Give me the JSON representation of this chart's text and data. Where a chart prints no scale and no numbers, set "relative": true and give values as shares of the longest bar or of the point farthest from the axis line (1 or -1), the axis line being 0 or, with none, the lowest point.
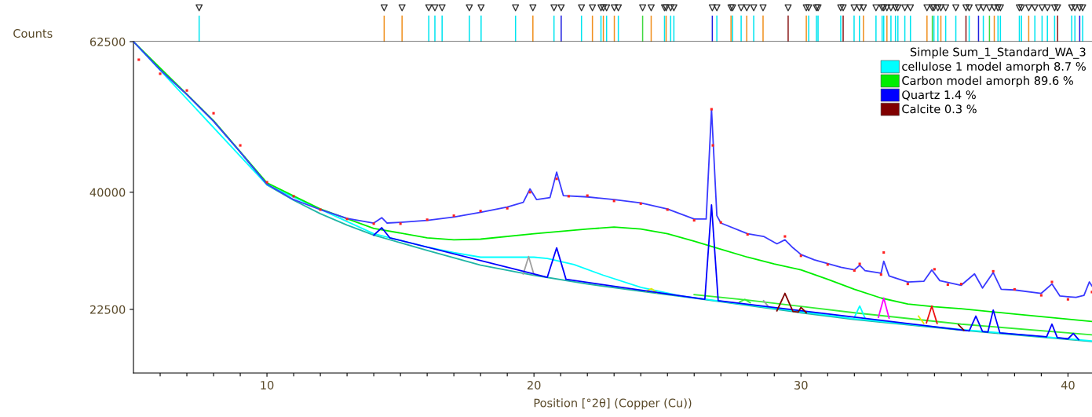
{
  "chart_data": [
    {
      "type": "bar",
      "relative": true,
      "tick_labels": false,
      "xlim": [
        5,
        40.9
      ],
      "marker": "triangle",
      "series": [
        {
          "color": "#00e5f0",
          "x": [
            7.46,
            16.06,
            16.29,
            16.56,
            17.58,
            18.02,
            19.31,
            20.75,
            21.78,
            22.51,
            22.72,
            23.16,
            24.89,
            25.12,
            25.24,
            26.85,
            27.44,
            27.76,
            28.23,
            30.29,
            30.58,
            30.64,
            31.49,
            31.99,
            32.19,
            32.81,
            33.04,
            33.1,
            33.37,
            33.54,
            33.63,
            33.89,
            34.1,
            34.98,
            35.13,
            35.42,
            35.8,
            36.3,
            36.83,
            37.38,
            37.47,
            38.18,
            38.26,
            38.76,
            39.03,
            39.23,
            39.5,
            40.14,
            40.26,
            40.55
          ],
          "values": [
            1,
            1,
            1,
            1,
            1,
            1,
            1,
            1,
            1,
            1,
            1,
            1,
            1,
            1,
            1,
            1,
            1,
            1,
            1,
            1,
            1,
            1,
            1,
            1,
            1,
            1,
            1,
            1,
            1,
            1,
            1,
            1,
            1,
            1,
            1,
            1,
            1,
            1,
            1,
            1,
            1,
            1,
            1,
            1,
            1,
            1,
            1,
            1,
            1,
            1
          ]
        },
        {
          "color": "#f0901e",
          "x": [
            14.39,
            15.06,
            19.96,
            22.19,
            22.6,
            23.01,
            24.39,
            24.95,
            27.38,
            27.97,
            28.58,
            30.2,
            32.34,
            33.22,
            34.72,
            35.24,
            37.24,
            38.53
          ],
          "values": [
            1,
            1,
            1,
            1,
            1,
            1,
            1,
            1,
            1,
            1,
            1,
            1,
            1,
            1,
            1,
            1,
            1,
            1
          ]
        },
        {
          "color": "#2020e0",
          "x": [
            21.02,
            26.68,
            36.65,
            40.44
          ],
          "values": [
            1,
            1,
            1,
            1
          ]
        },
        {
          "color": "#40d840",
          "x": [
            24.07,
            34.92,
            37.06
          ],
          "values": [
            1,
            1,
            1
          ]
        },
        {
          "color": "#8b1a1a",
          "x": [
            29.52,
            31.58,
            36.18,
            39.61
          ],
          "values": [
            1,
            1,
            1,
            1
          ]
        }
      ]
    },
    {
      "type": "line",
      "ylabel": "Counts",
      "xlabel": "Position [°2θ] (Copper (Cu))",
      "legend_title": "Simple Sum_1_Standard_WA_3",
      "legend": "top right",
      "xlim": [
        5,
        40.9
      ],
      "ylim": [
        13000,
        62500
      ],
      "yticks": [
        22500,
        40000,
        62500
      ],
      "xticks": [
        {
          "value": 6,
          "label": null
        },
        {
          "value": 7,
          "label": null
        },
        {
          "value": 8,
          "label": null
        },
        {
          "value": 9,
          "label": null
        },
        10,
        {
          "value": 11,
          "label": null
        },
        {
          "value": 12,
          "label": null
        },
        {
          "value": 13,
          "label": null
        },
        {
          "value": 14,
          "label": null
        },
        {
          "value": 15,
          "label": null
        },
        {
          "value": 16,
          "label": null
        },
        {
          "value": 17,
          "label": null
        },
        {
          "value": 18,
          "label": null
        },
        {
          "value": 19,
          "label": null
        },
        20,
        {
          "value": 21,
          "label": null
        },
        {
          "value": 22,
          "label": null
        },
        {
          "value": 23,
          "label": null
        },
        {
          "value": 24,
          "label": null
        },
        {
          "value": 25,
          "label": null
        },
        {
          "value": 26,
          "label": null
        },
        {
          "value": 27,
          "label": null
        },
        {
          "value": 28,
          "label": null
        },
        {
          "value": 29,
          "label": null
        },
        30,
        {
          "value": 31,
          "label": null
        },
        {
          "value": 32,
          "label": null
        },
        {
          "value": 33,
          "label": null
        },
        {
          "value": 34,
          "label": null
        },
        {
          "value": 35,
          "label": null
        },
        {
          "value": 36,
          "label": null
        },
        {
          "value": 37,
          "label": null
        },
        {
          "value": 38,
          "label": null
        },
        {
          "value": 39,
          "label": null
        },
        40
      ],
      "series": [
        {
          "color": "#1fb5a5",
          "x": [
            5,
            6,
            7,
            8,
            9,
            10,
            11,
            12,
            13,
            14,
            16,
            18,
            20,
            22,
            24,
            26,
            28,
            30,
            32,
            34,
            36,
            38,
            40.9
          ],
          "values": [
            62500,
            58300,
            54600,
            50600,
            46000,
            41100,
            38800,
            36800,
            35100,
            33600,
            31300,
            29100,
            27600,
            26300,
            25200,
            24200,
            23100,
            22000,
            21000,
            20200,
            19400,
            18700,
            17700
          ]
        },
        {
          "name": "cellulose 1 model amorph 8.7 %",
          "color": "#00ffff",
          "x": [
            5,
            10,
            14,
            16,
            17,
            18,
            19,
            20,
            20.5,
            21.5,
            22.6,
            24,
            25.5,
            28,
            32,
            36,
            40.9
          ],
          "values": [
            62500,
            41100,
            33800,
            31800,
            31000,
            30300,
            30300,
            30300,
            30100,
            29200,
            27600,
            25800,
            24500,
            23200,
            21100,
            19500,
            17800
          ]
        },
        {
          "name": "Carbon model amorph 89.6 %",
          "color": "#00ee00",
          "x": [
            5,
            8,
            10,
            12,
            14,
            16,
            17,
            18,
            20,
            22,
            23,
            24,
            25,
            26,
            27,
            28,
            29,
            30,
            31,
            32,
            33,
            34,
            35,
            36,
            38,
            40.9
          ],
          "values": [
            62500,
            50700,
            41400,
            37500,
            34600,
            33200,
            32900,
            33000,
            33800,
            34500,
            34800,
            34500,
            33800,
            32700,
            31500,
            30300,
            29300,
            28400,
            27000,
            25500,
            24200,
            23300,
            22900,
            22600,
            21800,
            20700
          ]
        },
        {
          "color": "#33ee33",
          "x": [
            26,
            28,
            32,
            36,
            40.9
          ],
          "values": [
            24700,
            23900,
            22000,
            20300,
            18700
          ]
        },
        {
          "color": "#33ee33",
          "x": [
            27.7,
            27.9,
            28.1
          ],
          "values": [
            23600,
            24000,
            23500
          ]
        },
        {
          "color": "#a0a0a0",
          "x": [
            19.6,
            19.8,
            20.0,
            28.4,
            28.6,
            28.8
          ],
          "values": [
            27800,
            30400,
            27700,
            null,
            23800,
            22800
          ]
        },
        {
          "color": "#ff00ff",
          "x": [
            32.9,
            33.1,
            33.3
          ],
          "values": [
            21300,
            24200,
            21200
          ]
        },
        {
          "color": "#ee1111",
          "x": [
            34.7,
            34.9,
            35.1
          ],
          "values": [
            20500,
            23000,
            20400
          ]
        },
        {
          "color": "#e8e800",
          "x": [
            24.2,
            24.4,
            24.6,
            34.2,
            34.4,
            34.6
          ],
          "values": [
            25200,
            25600,
            25000,
            null,
            21500,
            20400
          ]
        },
        {
          "color": "#00ffff",
          "x": [
            32.0,
            32.2,
            32.4
          ],
          "values": [
            21300,
            23000,
            21200
          ]
        },
        {
          "name": "Quartz 1.4 %",
          "color": "#0000ff",
          "x": [
            14,
            14.3,
            14.6,
            20.5,
            20.85,
            21.2,
            26.4,
            26.65,
            26.9,
            36.3,
            36.55,
            36.8,
            37.0,
            37.2,
            37.45,
            39.2,
            39.4,
            39.6,
            40.0,
            40.2,
            40.4
          ],
          "values": [
            33600,
            34700,
            33200,
            27300,
            31700,
            27000,
            24000,
            38100,
            23800,
            19300,
            21500,
            19200,
            19100,
            22400,
            19000,
            18400,
            20300,
            18300,
            18100,
            18900,
            18000
          ]
        },
        {
          "name": "Calcite 0.3 %",
          "color": "#800000",
          "x": [
            29.1,
            29.4,
            29.7,
            29.9,
            30.0,
            30.2,
            35.7,
            35.9,
            36.1
          ],
          "values": [
            22300,
            24900,
            22200,
            22100,
            22800,
            22000,
            null,
            20200,
            19400
          ]
        },
        {
          "type": "scatter",
          "color": "#ff2020",
          "x": [
            5.2,
            6,
            7,
            8,
            9,
            10,
            11,
            12,
            13,
            14,
            15,
            16,
            17,
            18,
            19,
            19.85,
            20.85,
            21.3,
            22,
            23,
            24,
            25,
            26,
            26.65,
            26.7,
            27,
            28,
            29.4,
            30,
            31,
            32,
            32.2,
            33,
            33.1,
            34,
            35,
            35.5,
            36,
            37.2,
            38,
            39,
            39.4,
            40,
            40.9
          ],
          "values": [
            59800,
            57700,
            55200,
            51800,
            47000,
            41500,
            39400,
            37400,
            36000,
            35300,
            35300,
            35900,
            36500,
            37200,
            37600,
            40000,
            42000,
            39400,
            39500,
            38700,
            38300,
            37400,
            35800,
            52400,
            47000,
            35500,
            33700,
            33400,
            30500,
            29200,
            28300,
            29300,
            27700,
            31000,
            26300,
            28500,
            26200,
            26300,
            28200,
            25500,
            24600,
            26600,
            24000,
            25100
          ]
        },
        {
          "color": "#3a3aff",
          "x": [
            5,
            6,
            7,
            8,
            9,
            10,
            11,
            12,
            13,
            14,
            14.3,
            14.5,
            15,
            16,
            17,
            18,
            19,
            19.6,
            19.85,
            20.1,
            20.6,
            20.85,
            21.1,
            22,
            23,
            24,
            25,
            26,
            26.45,
            26.65,
            26.85,
            27,
            28,
            28.6,
            29.1,
            29.4,
            29.7,
            30,
            30.5,
            31.5,
            32,
            32.2,
            32.4,
            33,
            33.1,
            33.3,
            34,
            34.6,
            34.9,
            35.2,
            36,
            36.5,
            36.8,
            37.2,
            37.5,
            38,
            39,
            39.4,
            39.7,
            40,
            40.3,
            40.6,
            40.8,
            40.9
          ],
          "values": [
            62500,
            58300,
            54600,
            50600,
            46000,
            41200,
            38900,
            37400,
            36100,
            35400,
            36200,
            35400,
            35500,
            35800,
            36300,
            37000,
            37800,
            38500,
            40500,
            38900,
            39200,
            43000,
            39500,
            39300,
            38900,
            38400,
            37500,
            36000,
            36000,
            52400,
            36500,
            35400,
            33800,
            33400,
            32300,
            32900,
            31700,
            30700,
            29900,
            28800,
            28400,
            29100,
            28300,
            27900,
            29700,
            27500,
            26600,
            26700,
            28400,
            26800,
            26100,
            27800,
            25700,
            28000,
            25500,
            25400,
            24900,
            26300,
            24500,
            24400,
            24300,
            24600,
            26600,
            26000
          ]
        }
      ]
    }
  ]
}
